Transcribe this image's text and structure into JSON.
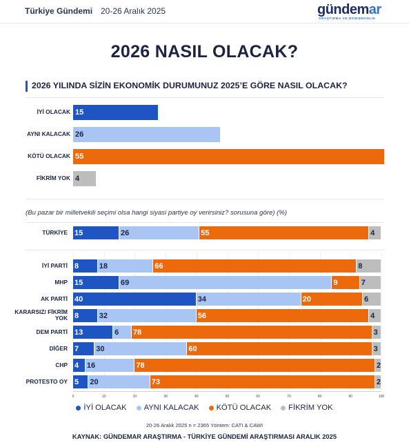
{
  "header": {
    "left_title": "Türkiye Gündemi",
    "date_range": "20-26 Aralık 2025",
    "logo_main": "gündem",
    "logo_accent": "ar",
    "logo_sub": "ARAŞTIRMA VE DANIŞMANLIK"
  },
  "main_title": "2026 NASIL OLACAK?",
  "question": "2026 YILINDA SİZİN EKONOMİK DURUMUNUZ 2025’E GÖRE NASIL OLACAK?",
  "sub_question": "(Bu pazar bir milletvekili seçimi olsa hangi siyasi partiye oy verirsiniz? sorusuna göre) (%)",
  "colors": {
    "iyi": "#1f55c2",
    "ayni": "#a9c5f3",
    "kotu": "#ec6a0c",
    "fikrim": "#bdbdbd"
  },
  "chart_data": [
    {
      "type": "bar",
      "orientation": "horizontal",
      "categories": [
        "İYİ OLACAK",
        "AYNI KALACAK",
        "KÖTÜ OLACAK",
        "FİKRİM YOK"
      ],
      "values": [
        15,
        26,
        55,
        4
      ],
      "xlim": [
        0,
        55
      ]
    },
    {
      "type": "bar",
      "orientation": "horizontal",
      "stacked": true,
      "categories": [
        "TÜRKİYE",
        "İYİ PARTİ",
        "MHP",
        "AK PARTİ",
        "KARARSIZ/ FİKRİM YOK",
        "DEM PARTİ",
        "DİĞER",
        "CHP",
        "PROTESTO OY"
      ],
      "series": [
        {
          "name": "İYİ OLACAK",
          "values": [
            15,
            8,
            15,
            40,
            8,
            13,
            7,
            4,
            5
          ]
        },
        {
          "name": "AYNI KALACAK",
          "values": [
            26,
            18,
            69,
            34,
            32,
            6,
            30,
            16,
            20
          ]
        },
        {
          "name": "KÖTÜ OLACAK",
          "values": [
            55,
            66,
            9,
            20,
            56,
            78,
            60,
            78,
            73
          ]
        },
        {
          "name": "FİKRİM YOK",
          "values": [
            4,
            8,
            7,
            6,
            4,
            3,
            3,
            2,
            2
          ]
        }
      ],
      "xlim": [
        0,
        100
      ],
      "x_ticks": [
        0,
        10,
        20,
        30,
        40,
        50,
        60,
        70,
        80,
        90,
        100
      ],
      "legend_position": "bottom"
    }
  ],
  "footnote": "20-26 Aralık 2025 n = 2365 Yöntem: CATI & CAWI",
  "source": "KAYNAK: GÜNDEMAR ARAŞTIRMA - TÜRKİYE GÜNDEMİ ARAŞTIRMASI ARALIK 2025"
}
